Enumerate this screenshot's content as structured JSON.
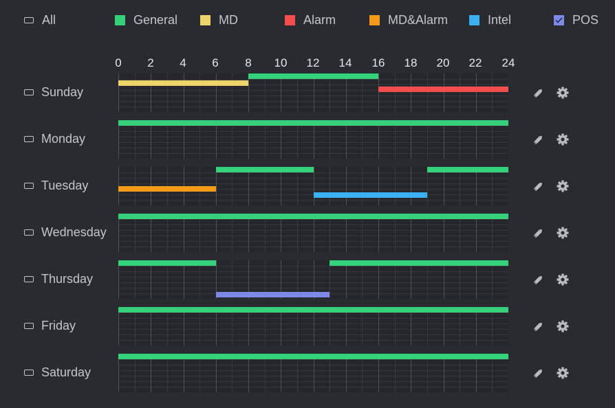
{
  "colors": {
    "general": "#35d07a",
    "md": "#ecd46a",
    "alarm": "#f44d4d",
    "md_alarm": "#f39a16",
    "intel": "#3ab0f0",
    "pos": "#7e89e6"
  },
  "legend": {
    "all": "All",
    "general": "General",
    "md": "MD",
    "alarm": "Alarm",
    "md_alarm": "MD&Alarm",
    "intel": "Intel",
    "pos": "POS"
  },
  "hours": [
    "0",
    "2",
    "4",
    "6",
    "8",
    "10",
    "12",
    "14",
    "16",
    "18",
    "20",
    "22",
    "24"
  ],
  "days": [
    {
      "label": "Sunday",
      "bars": [
        {
          "type": "md",
          "start": 0,
          "end": 8,
          "lane": 1
        },
        {
          "type": "general",
          "start": 8,
          "end": 16,
          "lane": 0
        },
        {
          "type": "alarm",
          "start": 16,
          "end": 24,
          "lane": 2
        }
      ]
    },
    {
      "label": "Monday",
      "bars": [
        {
          "type": "general",
          "start": 0,
          "end": 24,
          "lane": 0
        }
      ]
    },
    {
      "label": "Tuesday",
      "bars": [
        {
          "type": "general",
          "start": 6,
          "end": 12,
          "lane": 0
        },
        {
          "type": "general",
          "start": 19,
          "end": 24,
          "lane": 0
        },
        {
          "type": "md_alarm",
          "start": 0,
          "end": 6,
          "lane": 3
        },
        {
          "type": "intel",
          "start": 12,
          "end": 19,
          "lane": 4
        }
      ]
    },
    {
      "label": "Wednesday",
      "bars": [
        {
          "type": "general",
          "start": 0,
          "end": 24,
          "lane": 0
        }
      ]
    },
    {
      "label": "Thursday",
      "bars": [
        {
          "type": "general",
          "start": 0,
          "end": 6,
          "lane": 0
        },
        {
          "type": "general",
          "start": 13,
          "end": 24,
          "lane": 0
        },
        {
          "type": "pos",
          "start": 6,
          "end": 13,
          "lane": 5
        }
      ]
    },
    {
      "label": "Friday",
      "bars": [
        {
          "type": "general",
          "start": 0,
          "end": 24,
          "lane": 0
        }
      ]
    },
    {
      "label": "Saturday",
      "bars": [
        {
          "type": "general",
          "start": 0,
          "end": 24,
          "lane": 0
        }
      ]
    }
  ],
  "row_icons": {
    "edit": "pencil-icon",
    "settings": "gear-icon"
  }
}
